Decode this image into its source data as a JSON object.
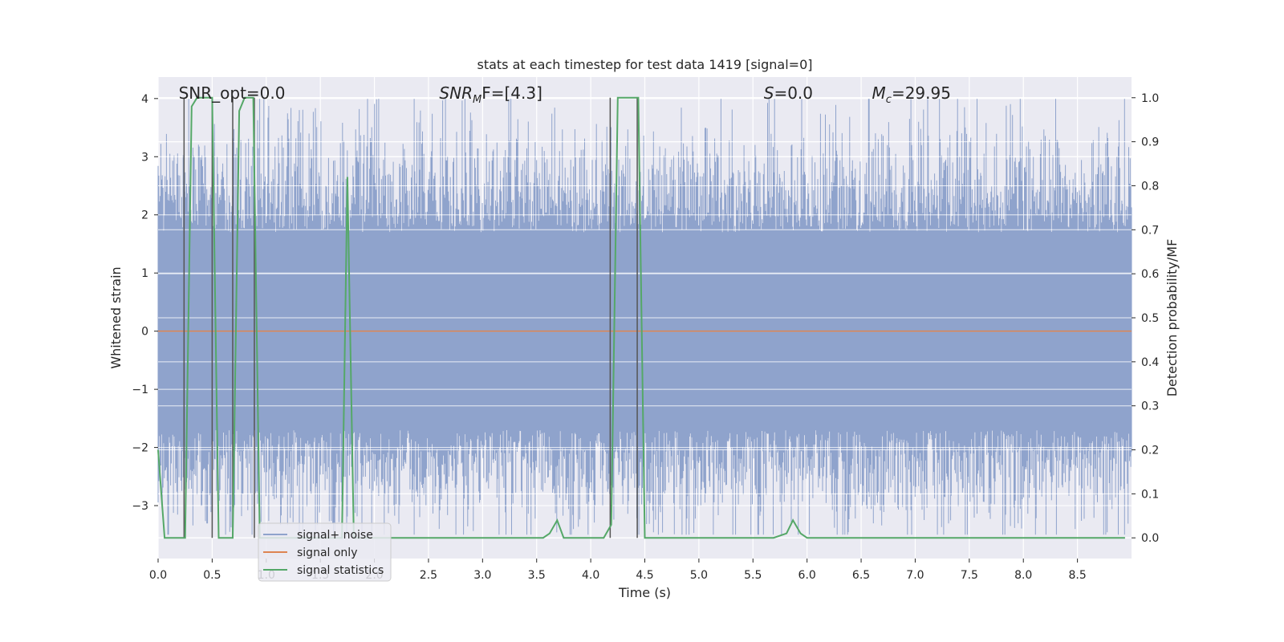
{
  "chart_data": {
    "type": "line",
    "title": "stats at each timestep for test data 1419 [signal=0]",
    "xlabel": "Time (s)",
    "ylabel": "Whitened strain",
    "y2label": "Detection probability/MF",
    "xlim": [
      0,
      9
    ],
    "ylim": [
      -3.91,
      4.37
    ],
    "y2lim": [
      -0.047,
      1.047
    ],
    "xticks": [
      0.0,
      0.5,
      1.0,
      1.5,
      2.0,
      2.5,
      3.0,
      3.5,
      4.0,
      4.5,
      5.0,
      5.5,
      6.0,
      6.5,
      7.0,
      7.5,
      8.0,
      8.5
    ],
    "xtick_labels": [
      "0.0",
      "0.5",
      "1.0",
      "1.5",
      "2.0",
      "2.5",
      "3.0",
      "3.5",
      "4.0",
      "4.5",
      "5.0",
      "5.5",
      "6.0",
      "6.5",
      "7.0",
      "7.5",
      "8.0",
      "8.5"
    ],
    "yticks": [
      -3,
      -2,
      -1,
      0,
      1,
      2,
      3,
      4
    ],
    "ytick_labels": [
      "−3",
      "−2",
      "−1",
      "0",
      "1",
      "2",
      "3",
      "4"
    ],
    "y2ticks": [
      0.0,
      0.1,
      0.2,
      0.3,
      0.4,
      0.5,
      0.6,
      0.7,
      0.8,
      0.9,
      1.0
    ],
    "y2tick_labels": [
      "0.0",
      "0.1",
      "0.2",
      "0.3",
      "0.4",
      "0.5",
      "0.6",
      "0.7",
      "0.8",
      "0.9",
      "1.0"
    ],
    "grid": true,
    "legend_position": "bottom-left",
    "noise_band": {
      "name": "signal+ noise",
      "color": "#8fa3cc",
      "typical_range": [
        -1.7,
        1.7
      ],
      "max_amplitude": 4.0,
      "sample_count": 1400,
      "seed": 1419
    },
    "series": [
      {
        "name": "signal+ noise",
        "color": "#8fa3cc"
      },
      {
        "name": "signal only",
        "color": "#dd8452",
        "x": [
          0,
          9
        ],
        "y": [
          0,
          0
        ]
      },
      {
        "name": "signal statistics",
        "axis": "right",
        "color": "#55a868",
        "x": [
          0.0,
          0.06,
          0.25,
          0.31,
          0.36,
          0.5,
          0.56,
          0.69,
          0.75,
          0.8,
          0.88,
          0.94,
          1.7,
          1.75,
          1.81,
          1.87,
          3.56,
          3.62,
          3.69,
          3.75,
          4.12,
          4.19,
          4.25,
          4.44,
          4.5,
          4.56,
          5.69,
          5.81,
          5.87,
          5.94,
          6.0,
          8.94
        ],
        "y": [
          0.2,
          0.0,
          0.0,
          0.98,
          1.0,
          1.0,
          0.0,
          0.0,
          0.97,
          1.0,
          1.0,
          0.0,
          0.0,
          0.82,
          0.0,
          0.0,
          0.0,
          0.01,
          0.04,
          0.0,
          0.0,
          0.03,
          1.0,
          1.0,
          0.0,
          0.0,
          0.0,
          0.01,
          0.04,
          0.01,
          0.0,
          0.0
        ]
      }
    ],
    "event_markers": {
      "color": "#555555",
      "segments": [
        {
          "x": 0.24,
          "y0": 0.0,
          "y1": 1.0
        },
        {
          "x": 0.5,
          "y0": 0.0,
          "y1": 1.0
        },
        {
          "x": 0.69,
          "y0": 0.0,
          "y1": 1.0
        },
        {
          "x": 0.89,
          "y0": 0.0,
          "y1": 1.0
        },
        {
          "x": 4.18,
          "y0": 0.0,
          "y1": 1.0
        },
        {
          "x": 4.43,
          "y0": 0.0,
          "y1": 1.0
        }
      ]
    },
    "annotations": [
      {
        "id": "snr-opt",
        "text": "SNR_opt=0.0",
        "x": 0.19,
        "y": 4.0
      },
      {
        "id": "snr-mf",
        "text_main": "SNR",
        "text_sub": "M",
        "text_rest": "F=[4.3]",
        "x": 2.6,
        "y": 4.0
      },
      {
        "id": "s-value",
        "text_main": "S",
        "text_rest": "=0.0",
        "x": 5.6,
        "y": 4.0
      },
      {
        "id": "chirp-mass",
        "text_main": "M",
        "text_sub": "c",
        "text_rest": "=29.95",
        "x": 6.6,
        "y": 4.0
      }
    ]
  }
}
